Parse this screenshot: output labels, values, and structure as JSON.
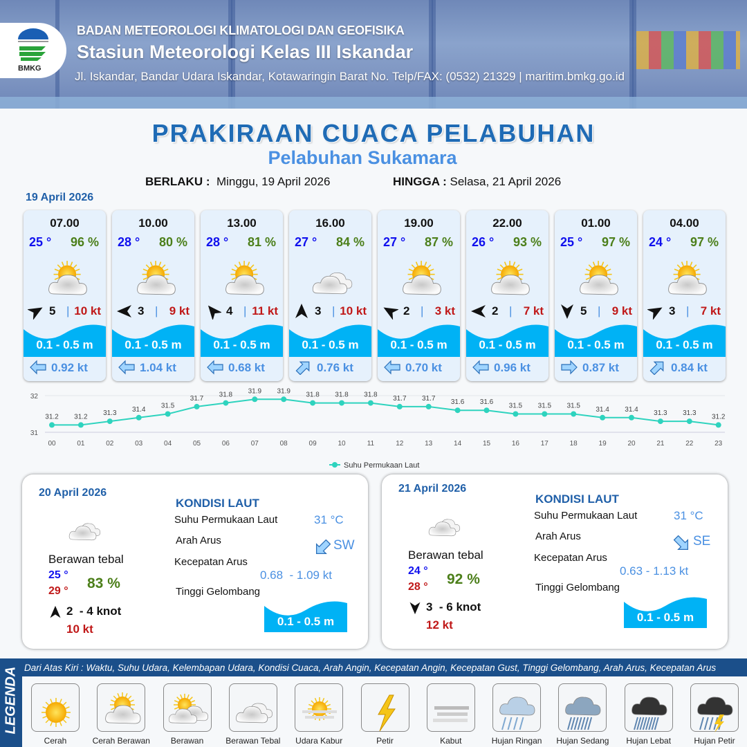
{
  "header": {
    "agency": "BADAN METEOROLOGI KLIMATOLOGI DAN GEOFISIKA",
    "station": "Stasiun Meteorologi Kelas III Iskandar",
    "address": "Jl. Iskandar, Bandar Udara Iskandar, Kotawaringin Barat No. Telp/FAX: (0532) 21329 | maritim.bmkg.go.id",
    "logo_text": "BMKG"
  },
  "title": "PRAKIRAAN CUACA PELABUHAN",
  "subtitle": "Pelabuhan Sukamara",
  "validity": {
    "from_label": "BERLAKU :",
    "from": "Minggu, 19 April 2026",
    "to_label": "HINGGA :",
    "to": "Selasa, 21 April 2026"
  },
  "day1": {
    "date": "19 April 2026",
    "forecasts": [
      {
        "time": "07.00",
        "temp": "25 °",
        "hum": "96 %",
        "icon": "cerah-berawan",
        "wind_dir_deg": 60,
        "wind": "5",
        "gust": "10 kt",
        "wave": "0.1 - 0.5 m",
        "current_dir": "W",
        "current": "0.92 kt"
      },
      {
        "time": "10.00",
        "temp": "28 °",
        "hum": "80 %",
        "icon": "cerah-berawan",
        "wind_dir_deg": 270,
        "wind": "3",
        "gust": "9 kt",
        "wave": "0.1 - 0.5 m",
        "current_dir": "W",
        "current": "1.04 kt"
      },
      {
        "time": "13.00",
        "temp": "28 °",
        "hum": "81 %",
        "icon": "cerah-berawan",
        "wind_dir_deg": 320,
        "wind": "4",
        "gust": "11 kt",
        "wave": "0.1 - 0.5 m",
        "current_dir": "W",
        "current": "0.68 kt"
      },
      {
        "time": "16.00",
        "temp": "27 °",
        "hum": "84 %",
        "icon": "berawan-tebal",
        "wind_dir_deg": 0,
        "wind": "3",
        "gust": "10 kt",
        "wave": "0.1 - 0.5 m",
        "current_dir": "NE",
        "current": "0.76 kt"
      },
      {
        "time": "19.00",
        "temp": "27 °",
        "hum": "87 %",
        "icon": "cerah-berawan",
        "wind_dir_deg": 300,
        "wind": "2",
        "gust": "3 kt",
        "wave": "0.1 - 0.5 m",
        "current_dir": "W",
        "current": "0.70 kt"
      },
      {
        "time": "22.00",
        "temp": "26 °",
        "hum": "93 %",
        "icon": "cerah-berawan",
        "wind_dir_deg": 270,
        "wind": "2",
        "gust": "7 kt",
        "wave": "0.1 - 0.5 m",
        "current_dir": "W",
        "current": "0.96 kt"
      },
      {
        "time": "01.00",
        "temp": "25 °",
        "hum": "97 %",
        "icon": "cerah-berawan",
        "wind_dir_deg": 180,
        "wind": "5",
        "gust": "9 kt",
        "wave": "0.1 - 0.5 m",
        "current_dir": "E",
        "current": "0.87 kt"
      },
      {
        "time": "04.00",
        "temp": "24 °",
        "hum": "97 %",
        "icon": "cerah-berawan",
        "wind_dir_deg": 60,
        "wind": "3",
        "gust": "7 kt",
        "wave": "0.1 - 0.5 m",
        "current_dir": "NE",
        "current": "0.84 kt"
      }
    ]
  },
  "chart_data": {
    "type": "line",
    "categories": [
      "00",
      "01",
      "02",
      "03",
      "04",
      "05",
      "06",
      "07",
      "08",
      "09",
      "10",
      "11",
      "12",
      "13",
      "14",
      "15",
      "16",
      "17",
      "18",
      "19",
      "20",
      "21",
      "22",
      "23"
    ],
    "series": [
      {
        "name": "Suhu Permukaan Laut",
        "values": [
          31.2,
          31.2,
          31.3,
          31.4,
          31.5,
          31.7,
          31.8,
          31.9,
          31.9,
          31.8,
          31.8,
          31.8,
          31.7,
          31.7,
          31.6,
          31.6,
          31.5,
          31.5,
          31.5,
          31.4,
          31.4,
          31.3,
          31.3,
          31.2
        ],
        "color": "#2ed3be"
      }
    ],
    "ylim": [
      31,
      32
    ],
    "yticks": [
      "31",
      "32"
    ],
    "grid": true,
    "legend": "bottom"
  },
  "days": [
    {
      "date": "20 April 2026",
      "condition": "Berawan tebal",
      "tmin": "25 °",
      "tmax": "29 °",
      "hum": "83 %",
      "wind_dir_deg": 0,
      "wind": "2  - 4 knot",
      "gust": "10 kt",
      "sea_title": "KONDISI LAUT",
      "sst_label": "Suhu Permukaan Laut",
      "sst": "31 °C",
      "cur_dir_label": "Arah Arus",
      "cur_dir": "SW",
      "cur_spd_label": "Kecepatan Arus",
      "cur_spd": "0.68  - 1.09 kt",
      "wave_label": "Tinggi Gelombang",
      "wave": "0.1 - 0.5 m"
    },
    {
      "date": "21 April 2026",
      "condition": "Berawan tebal",
      "tmin": "24 °",
      "tmax": "28 °",
      "hum": "92 %",
      "wind_dir_deg": 180,
      "wind": "3  - 6 knot",
      "gust": "12 kt",
      "sea_title": "KONDISI LAUT",
      "sst_label": "Suhu Permukaan Laut",
      "sst": "31 °C",
      "cur_dir_label": "Arah Arus",
      "cur_dir": "SE",
      "cur_spd_label": "Kecepatan Arus",
      "cur_spd": "0.63 - 1.13 kt",
      "wave_label": "Tinggi Gelombang",
      "wave": "0.1 - 0.5 m"
    }
  ],
  "legend": {
    "title": "LEGENDA",
    "description": "Dari Atas Kiri : Waktu, Suhu Udara, Kelembapan Udara, Kondisi Cuaca, Arah Angin, Kecepatan Angin, Kecepatan Gust, Tinggi Gelombang, Arah Arus, Kecepatan Arus",
    "items": [
      {
        "label": "Cerah",
        "icon": "cerah"
      },
      {
        "label": "Cerah Berawan",
        "icon": "cerah-berawan"
      },
      {
        "label": "Berawan",
        "icon": "berawan"
      },
      {
        "label": "Berawan Tebal",
        "icon": "berawan-tebal"
      },
      {
        "label": "Udara Kabur",
        "icon": "udara-kabur"
      },
      {
        "label": "Petir",
        "icon": "petir"
      },
      {
        "label": "Kabut",
        "icon": "kabut"
      },
      {
        "label": "Hujan Ringan",
        "icon": "hujan-ringan"
      },
      {
        "label": "Hujan Sedang",
        "icon": "hujan-sedang"
      },
      {
        "label": "Hujan Lebat",
        "icon": "hujan-lebat"
      },
      {
        "label": "Hujan Petir",
        "icon": "hujan-petir"
      }
    ]
  }
}
